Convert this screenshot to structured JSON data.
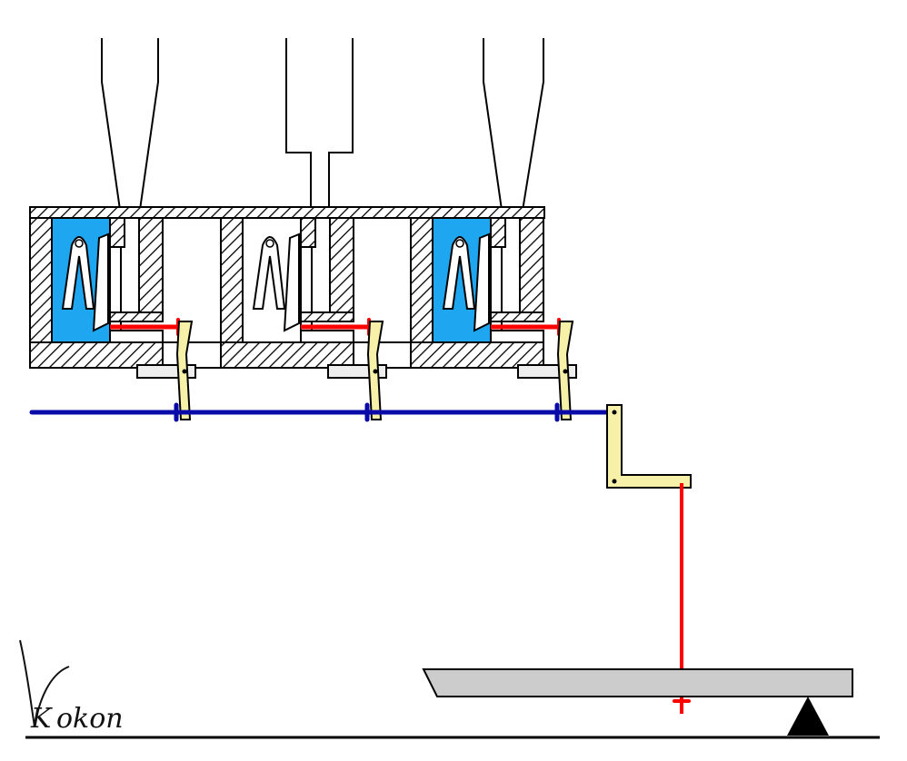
{
  "signature": {
    "initial": "K",
    "rest": "okon"
  },
  "units": [
    {
      "name": "left",
      "cavity_filled": true
    },
    {
      "name": "middle",
      "cavity_filled": false
    },
    {
      "name": "right",
      "cavity_filled": true
    }
  ],
  "colors": {
    "outline": "#000000",
    "hatch": "#000000",
    "cavity_fill": "#1ea7f0",
    "push_rod": "#ff0000",
    "connecting_rod": "#0a0aa8",
    "lever": "#f6f0a8",
    "bracket": "#eeeeee",
    "platform": "#cccccc",
    "background": "#ffffff"
  }
}
